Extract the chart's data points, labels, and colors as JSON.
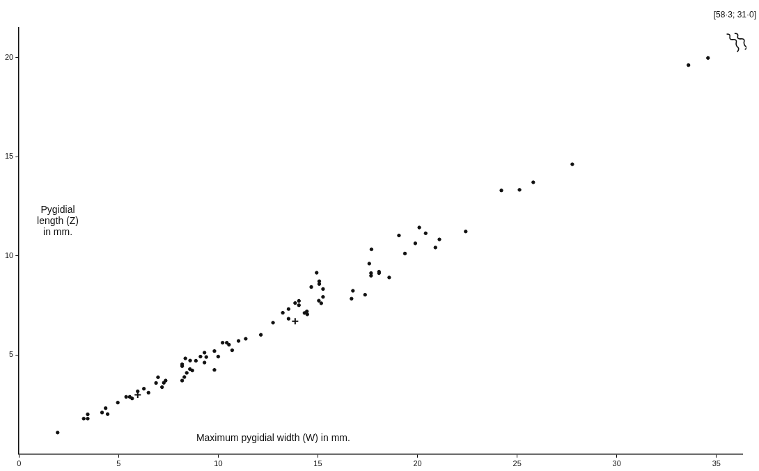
{
  "chart_data": {
    "type": "scatter",
    "xlabel": "Maximum pygidial width (W) in mm.",
    "ylabel": "Pygidial length (Z) in mm.",
    "annotations": [
      "[58·3; 31·0]"
    ],
    "series": [
      {
        "color": "#111111",
        "marker": "circle",
        "x": [
          1.94,
          3.25,
          3.45,
          3.45,
          4.17,
          4.35,
          4.45,
          4.96,
          5.38,
          5.56,
          5.68,
          5.96,
          6.27,
          6.5,
          6.88,
          6.98,
          7.18,
          7.27,
          7.36,
          8.19,
          8.3,
          8.19,
          8.19,
          8.42,
          8.35,
          8.58,
          8.7,
          8.59,
          8.88,
          9.11,
          9.31,
          9.31,
          9.4,
          9.81,
          9.81,
          10.0,
          10.22,
          10.43,
          10.54,
          10.7,
          11.02,
          11.38,
          12.14,
          12.75,
          13.24,
          13.53,
          13.53,
          13.86,
          14.05,
          14.05,
          14.33,
          14.45,
          14.47,
          14.67,
          14.94,
          15.07,
          15.07,
          15.26,
          15.26,
          15.05,
          15.17,
          16.69,
          16.76,
          17.37,
          17.58,
          17.67,
          17.67,
          18.07,
          18.07,
          17.69,
          18.58,
          19.07,
          19.37,
          19.89,
          20.09,
          20.41,
          20.9,
          21.1,
          22.42,
          24.21,
          25.12,
          25.81,
          27.77,
          33.6,
          34.58
        ],
        "values": [
          1.09,
          1.79,
          1.79,
          2.01,
          2.1,
          2.32,
          2.02,
          2.6,
          2.89,
          2.89,
          2.81,
          3.17,
          3.3,
          3.1,
          3.59,
          3.88,
          3.38,
          3.6,
          3.71,
          3.71,
          3.89,
          4.44,
          4.53,
          4.1,
          4.83,
          4.29,
          4.22,
          4.72,
          4.71,
          4.92,
          5.12,
          4.62,
          4.9,
          5.2,
          4.25,
          4.92,
          5.62,
          5.62,
          5.52,
          5.24,
          5.71,
          5.82,
          6.02,
          6.63,
          7.13,
          7.32,
          6.83,
          7.62,
          7.73,
          7.51,
          7.12,
          7.2,
          7.05,
          8.43,
          9.15,
          8.72,
          8.58,
          8.33,
          7.93,
          7.74,
          7.61,
          7.84,
          8.24,
          8.04,
          9.61,
          9.13,
          9.0,
          9.2,
          9.13,
          10.33,
          8.91,
          11.03,
          10.12,
          10.63,
          11.43,
          11.14,
          10.42,
          10.83,
          11.23,
          13.3,
          13.33,
          13.71,
          14.62,
          19.62,
          19.98
        ]
      },
      {
        "color": "#111111",
        "marker": "cross",
        "x": [
          5.96,
          13.86
        ],
        "values": [
          2.99,
          6.7
        ]
      }
    ],
    "xlim": [
      0,
      36.3
    ],
    "ylim": [
      0,
      21.5
    ],
    "xticks": [
      0,
      5,
      10,
      15,
      20,
      25,
      30,
      35
    ],
    "yticks": [
      5,
      10,
      15,
      20
    ],
    "grid": false,
    "legend": false
  }
}
